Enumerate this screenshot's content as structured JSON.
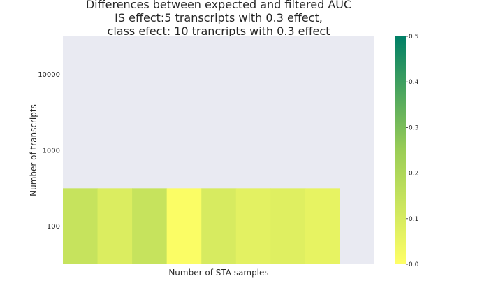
{
  "chart_data": {
    "type": "heatmap",
    "title": [
      "Differences between expected and filtered AUC",
      "IS effect:5 transcripts with 0.3 effect,",
      "class efect: 10 trancripts with 0.3 effect"
    ],
    "xlabel": "Number of STA samples",
    "ylabel": "Number of transcripts",
    "y_categories": [
      "10000",
      "1000",
      "100"
    ],
    "x_count": 9,
    "cells": [
      {
        "x_index": 0,
        "y_category": "100",
        "value": 0.14
      },
      {
        "x_index": 1,
        "y_category": "100",
        "value": 0.09
      },
      {
        "x_index": 2,
        "y_category": "100",
        "value": 0.14
      },
      {
        "x_index": 3,
        "y_category": "100",
        "value": 0.01
      },
      {
        "x_index": 4,
        "y_category": "100",
        "value": 0.1
      },
      {
        "x_index": 5,
        "y_category": "100",
        "value": 0.07
      },
      {
        "x_index": 6,
        "y_category": "100",
        "value": 0.08
      },
      {
        "x_index": 7,
        "y_category": "100",
        "value": 0.06
      }
    ],
    "colorbar": {
      "range": [
        0.0,
        0.5
      ],
      "ticks": [
        "0.0",
        "0.1",
        "0.2",
        "0.3",
        "0.4",
        "0.5"
      ],
      "colors": [
        "#ffff66",
        "#9acd56",
        "#007f66"
      ]
    },
    "background": "#e9eaf2"
  }
}
